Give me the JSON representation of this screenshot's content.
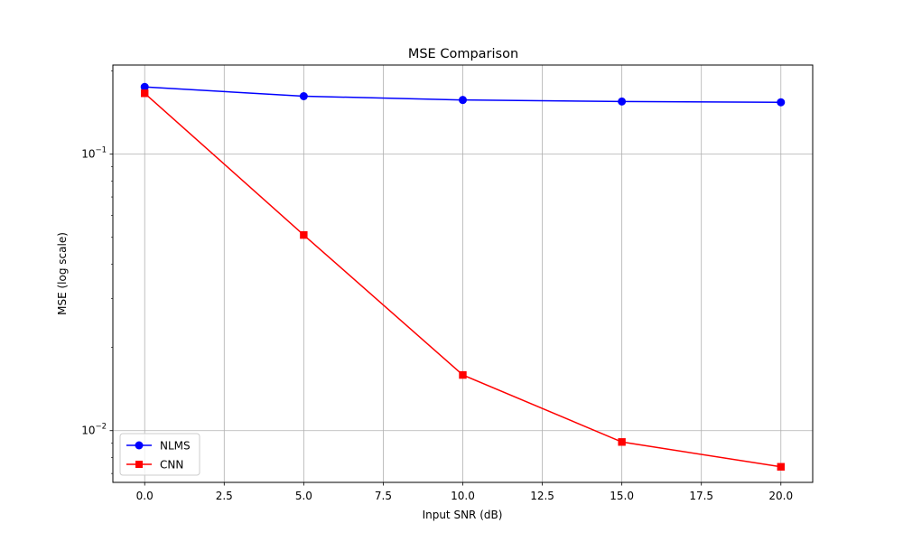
{
  "chart_data": {
    "type": "line",
    "title": "MSE Comparison",
    "xlabel": "Input SNR (dB)",
    "ylabel": "MSE (log scale)",
    "xscale": "linear",
    "yscale": "log",
    "xlim": [
      -1,
      21
    ],
    "ylim": [
      0.0065,
      0.21
    ],
    "xticks": [
      0.0,
      2.5,
      5.0,
      7.5,
      10.0,
      12.5,
      15.0,
      17.5,
      20.0
    ],
    "xtick_labels": [
      "0.0",
      "2.5",
      "5.0",
      "7.5",
      "10.0",
      "12.5",
      "15.0",
      "17.5",
      "20.0"
    ],
    "yticks_major": [
      0.01,
      0.1
    ],
    "ytick_labels_major": [
      {
        "base": "10",
        "exp": "−2"
      },
      {
        "base": "10",
        "exp": "−1"
      }
    ],
    "grid": true,
    "legend_position": "lower left",
    "x": [
      0,
      5,
      10,
      15,
      20
    ],
    "series": [
      {
        "name": "NLMS",
        "values": [
          0.175,
          0.162,
          0.157,
          0.155,
          0.154
        ],
        "color": "#0000ff",
        "marker": "circle"
      },
      {
        "name": "CNN",
        "values": [
          0.166,
          0.051,
          0.0159,
          0.0091,
          0.0074
        ],
        "color": "#ff0000",
        "marker": "square"
      }
    ]
  }
}
